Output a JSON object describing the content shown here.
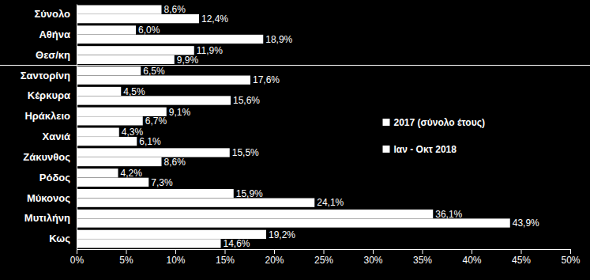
{
  "chart_data": {
    "type": "bar",
    "orientation": "horizontal",
    "categories": [
      "Σύνολο",
      "Αθήνα",
      "Θεσ/κη",
      "Σαντορίνη",
      "Κέρκυρα",
      "Ηράκλειο",
      "Χανιά",
      "Ζάκυνθος",
      "Ρόδος",
      "Μύκονος",
      "Μυτιλήνη",
      "Κως"
    ],
    "series": [
      {
        "name": "2017 (σύνολο έτους)",
        "color": "#ffffff",
        "values": [
          8.6,
          6.0,
          11.9,
          6.5,
          4.5,
          9.1,
          4.3,
          15.5,
          4.2,
          15.9,
          36.1,
          19.2
        ],
        "value_labels": [
          "8,6%",
          "6,0%",
          "11,9%",
          "6,5%",
          "4,5%",
          "9,1%",
          "4,3%",
          "15,5%",
          "4,2%",
          "15,9%",
          "36,1%",
          "19,2%"
        ]
      },
      {
        "name": "Ιαν - Οκτ 2018",
        "color": "#ffffff",
        "values": [
          12.4,
          18.9,
          9.9,
          17.6,
          15.6,
          6.7,
          6.1,
          8.6,
          7.3,
          24.1,
          43.9,
          14.6
        ],
        "value_labels": [
          "12,4%",
          "18,9%",
          "9,9%",
          "17,6%",
          "15,6%",
          "6,7%",
          "6,1%",
          "8,6%",
          "7,3%",
          "24,1%",
          "43,9%",
          "14,6%"
        ]
      }
    ],
    "xlim": [
      0,
      50
    ],
    "xticks": [
      {
        "value": 0,
        "label": "0%"
      },
      {
        "value": 5,
        "label": "5%"
      },
      {
        "value": 10,
        "label": "10%"
      },
      {
        "value": 15,
        "label": "15%"
      },
      {
        "value": 20,
        "label": "20%"
      },
      {
        "value": 25,
        "label": "25%"
      },
      {
        "value": 30,
        "label": "30%"
      },
      {
        "value": 35,
        "label": "35%"
      },
      {
        "value": 40,
        "label": "40%"
      },
      {
        "value": 45,
        "label": "45%"
      },
      {
        "value": 50,
        "label": "50%"
      }
    ],
    "grid": false,
    "legend": "right",
    "data_labels": true
  }
}
